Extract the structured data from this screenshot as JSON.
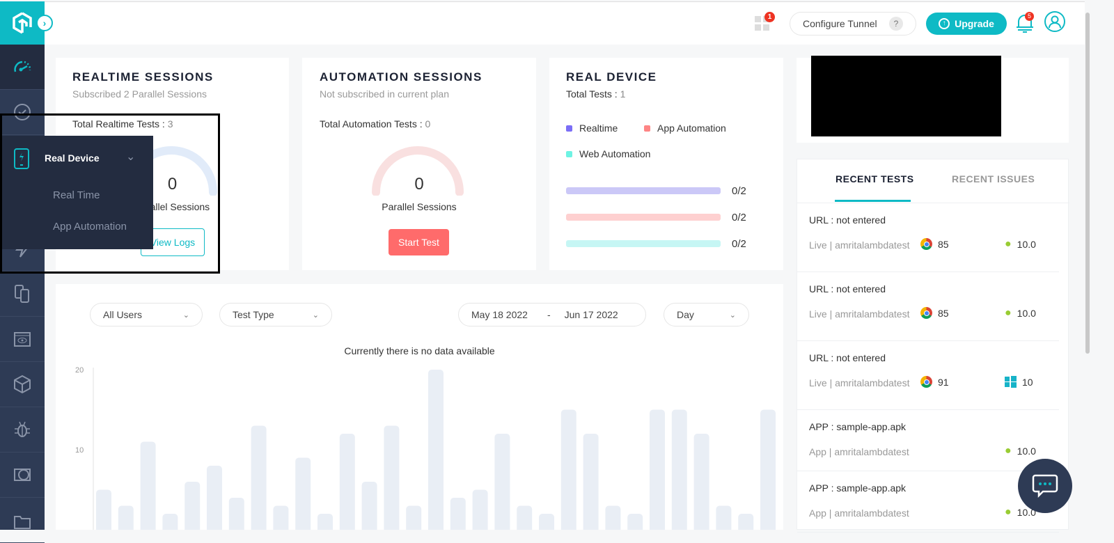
{
  "header": {
    "apps_badge": "1",
    "configure_tunnel": "Configure Tunnel",
    "help": "?",
    "upgrade": "Upgrade",
    "notifications_badge": "5",
    "brand_color": "#0ebac5"
  },
  "sidebar": {
    "items": [
      "dashboard-icon",
      "history-icon",
      "real-device-icon",
      "automation-icon",
      "hyperexecute-icon",
      "visual-testing-icon",
      "smart-ui-icon",
      "integrations-icon",
      "issue-tracker-icon",
      "toggle-icon",
      "folder-icon"
    ],
    "flyout": {
      "title": "Real Device",
      "items": [
        "Real Time",
        "App Automation"
      ]
    }
  },
  "realtime": {
    "title": "REALTIME SESSIONS",
    "subtitle": "Subscribed 2 Parallel Sessions",
    "total_label": "Total Realtime Tests :",
    "total_value": "3",
    "gauge_value": "0",
    "gauge_label": "Parallel Sessions",
    "button": "View Logs"
  },
  "automation": {
    "title": "AUTOMATION SESSIONS",
    "subtitle": "Not subscribed in current plan",
    "total_label": "Total Automation Tests :",
    "total_value": "0",
    "gauge_value": "0",
    "gauge_label": "Parallel Sessions",
    "button": "Start Test"
  },
  "real_device": {
    "title": "REAL DEVICE",
    "total_label": "Total Tests :",
    "total_value": "1",
    "legend": [
      {
        "label": "Realtime",
        "color": "#7b6ef6"
      },
      {
        "label": "App Automation",
        "color": "#fe8585"
      },
      {
        "label": "Web Automation",
        "color": "#6ef3e3"
      }
    ],
    "bars": [
      {
        "value": "0/2",
        "color": "#cbc8f7"
      },
      {
        "value": "0/2",
        "color": "#fed0d0"
      },
      {
        "value": "0/2",
        "color": "#c6f6f4"
      }
    ]
  },
  "filters": {
    "users": "All Users",
    "test_type": "Test Type",
    "date_from": "May 18 2022",
    "date_sep": "-",
    "date_to": "Jun 17 2022",
    "granularity": "Day"
  },
  "chart_data": {
    "type": "bar",
    "title": "Currently there is no data available",
    "ylim": [
      0,
      20
    ],
    "yticks": [
      "20",
      "10"
    ],
    "values": [
      5,
      3,
      11,
      2,
      6,
      8,
      4,
      13,
      3,
      9,
      2,
      12,
      6,
      13,
      3,
      20,
      4,
      5,
      12,
      3,
      2,
      15,
      12,
      3,
      2,
      15,
      15,
      12,
      3,
      2,
      15
    ]
  },
  "recent": {
    "tabs": [
      "RECENT TESTS",
      "RECENT ISSUES"
    ],
    "items": [
      {
        "title": "URL : not entered",
        "meta": "Live | amritalambdatest",
        "browser": "chrome",
        "browser_version": "85",
        "os": "android",
        "os_version": "10.0"
      },
      {
        "title": "URL : not entered",
        "meta": "Live | amritalambdatest",
        "browser": "chrome",
        "browser_version": "85",
        "os": "android",
        "os_version": "10.0"
      },
      {
        "title": "URL : not entered",
        "meta": "Live | amritalambdatest",
        "browser": "chrome",
        "browser_version": "91",
        "os": "windows",
        "os_version": "10"
      },
      {
        "title": "APP : sample-app.apk",
        "meta": "App | amritalambdatest",
        "os": "android",
        "os_version": "10.0"
      },
      {
        "title": "APP : sample-app.apk",
        "meta": "App | amritalambdatest",
        "os": "android",
        "os_version": "10.0"
      }
    ]
  }
}
